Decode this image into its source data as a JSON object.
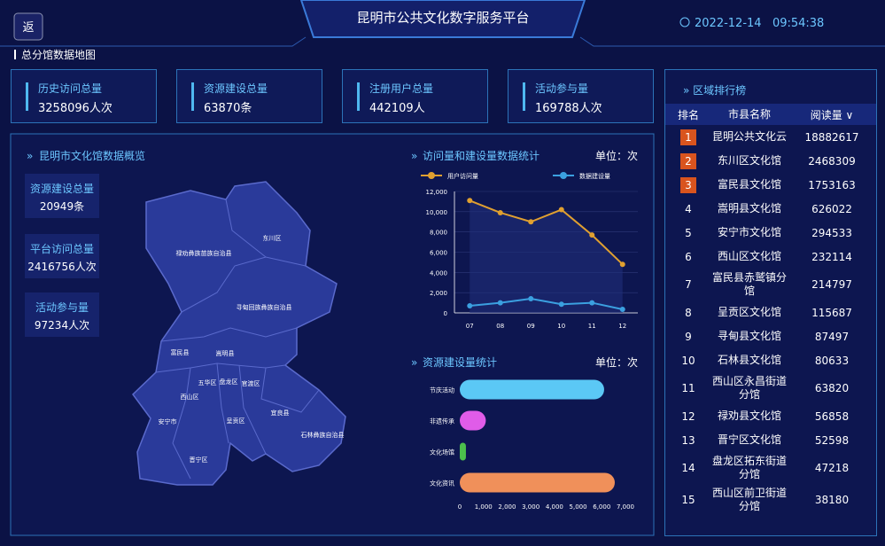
{
  "header": {
    "back": "返",
    "title": "昆明市公共文化数字服务平台",
    "datetime": "2022-12-14   09:54:38",
    "section": "总分馆数据地图"
  },
  "stats": [
    {
      "label": "历史访问总量",
      "value": "3258096人次"
    },
    {
      "label": "资源建设总量",
      "value": "63870条"
    },
    {
      "label": "注册用户总量",
      "value": "442109人"
    },
    {
      "label": "活动参与量",
      "value": "169788人次"
    }
  ],
  "overview": {
    "title": "昆明市文化馆数据概览",
    "items": [
      {
        "label": "资源建设总量",
        "value": "20949条"
      },
      {
        "label": "平台访问总量",
        "value": "2416756人次"
      },
      {
        "label": "活动参与量",
        "value": "97234人次"
      }
    ]
  },
  "map": {
    "regions": [
      "禄劝彝族苗族自治县",
      "东川区",
      "寻甸回族彝族自治县",
      "富民县",
      "嵩明县",
      "五华区",
      "盘龙区",
      "官渡区",
      "西山区",
      "呈贡区",
      "安宁市",
      "宜良县",
      "石林彝族自治县",
      "晋宁区"
    ]
  },
  "chart_data": [
    {
      "type": "line",
      "title": "访问量和建设量数据统计",
      "unit": "单位：次",
      "categories": [
        "07",
        "08",
        "09",
        "10",
        "11",
        "12"
      ],
      "series": [
        {
          "name": "用户访问量",
          "color": "#e0a030",
          "values": [
            11100,
            9900,
            9000,
            10200,
            7700,
            4800
          ]
        },
        {
          "name": "数据建设量",
          "color": "#3ba0e0",
          "values": [
            700,
            1000,
            1400,
            850,
            1000,
            350
          ]
        }
      ],
      "ylim": [
        0,
        12000
      ],
      "yticks": [
        0,
        {
          "value": 2000,
          "label": "2,000"
        },
        {
          "value": 4000,
          "label": "4,000"
        },
        {
          "value": 6000,
          "label": "6,000"
        },
        {
          "value": 8000,
          "label": "8,000"
        },
        {
          "value": 10000,
          "label": "10,000"
        },
        {
          "value": 12000,
          "label": "12,000"
        }
      ],
      "grid": true
    },
    {
      "type": "hbar",
      "title": "资源建设量统计",
      "unit": "单位：次",
      "categories": [
        "节庆活动",
        "非遗传承",
        "文化场馆",
        "文化资讯"
      ],
      "values": [
        6100,
        1100,
        260,
        6550
      ],
      "colors": [
        "#5bc8f5",
        "#e05ce8",
        "#4cc04c",
        "#f0905a"
      ],
      "xlim": [
        0,
        7000
      ],
      "xticks": [
        0,
        {
          "value": 1000,
          "label": "1,000"
        },
        {
          "value": 2000,
          "label": "2,000"
        },
        {
          "value": 3000,
          "label": "3,000"
        },
        {
          "value": 4000,
          "label": "4,000"
        },
        {
          "value": 5000,
          "label": "5,000"
        },
        {
          "value": 6000,
          "label": "6,000"
        },
        {
          "value": 7000,
          "label": "7,000"
        }
      ]
    }
  ],
  "ranking": {
    "title": "区域排行榜",
    "columns": [
      "排名",
      "市县名称",
      "阅读量 ∨"
    ],
    "rows": [
      [
        1,
        "昆明公共文化云",
        18882617
      ],
      [
        2,
        "东川区文化馆",
        2468309
      ],
      [
        3,
        "富民县文化馆",
        1753163
      ],
      [
        4,
        "嵩明县文化馆",
        626022
      ],
      [
        5,
        "安宁市文化馆",
        294533
      ],
      [
        6,
        "西山区文化馆",
        232114
      ],
      [
        7,
        "富民县赤鹫镇分馆",
        214797
      ],
      [
        8,
        "呈贡区文化馆",
        115687
      ],
      [
        9,
        "寻甸县文化馆",
        87497
      ],
      [
        10,
        "石林县文化馆",
        80633
      ],
      [
        11,
        "西山区永昌街道分馆",
        63820
      ],
      [
        12,
        "禄劝县文化馆",
        56858
      ],
      [
        13,
        "晋宁区文化馆",
        52598
      ],
      [
        14,
        "盘龙区拓东街道分馆",
        47218
      ],
      [
        15,
        "西山区前卫街道分馆",
        38180
      ]
    ]
  }
}
